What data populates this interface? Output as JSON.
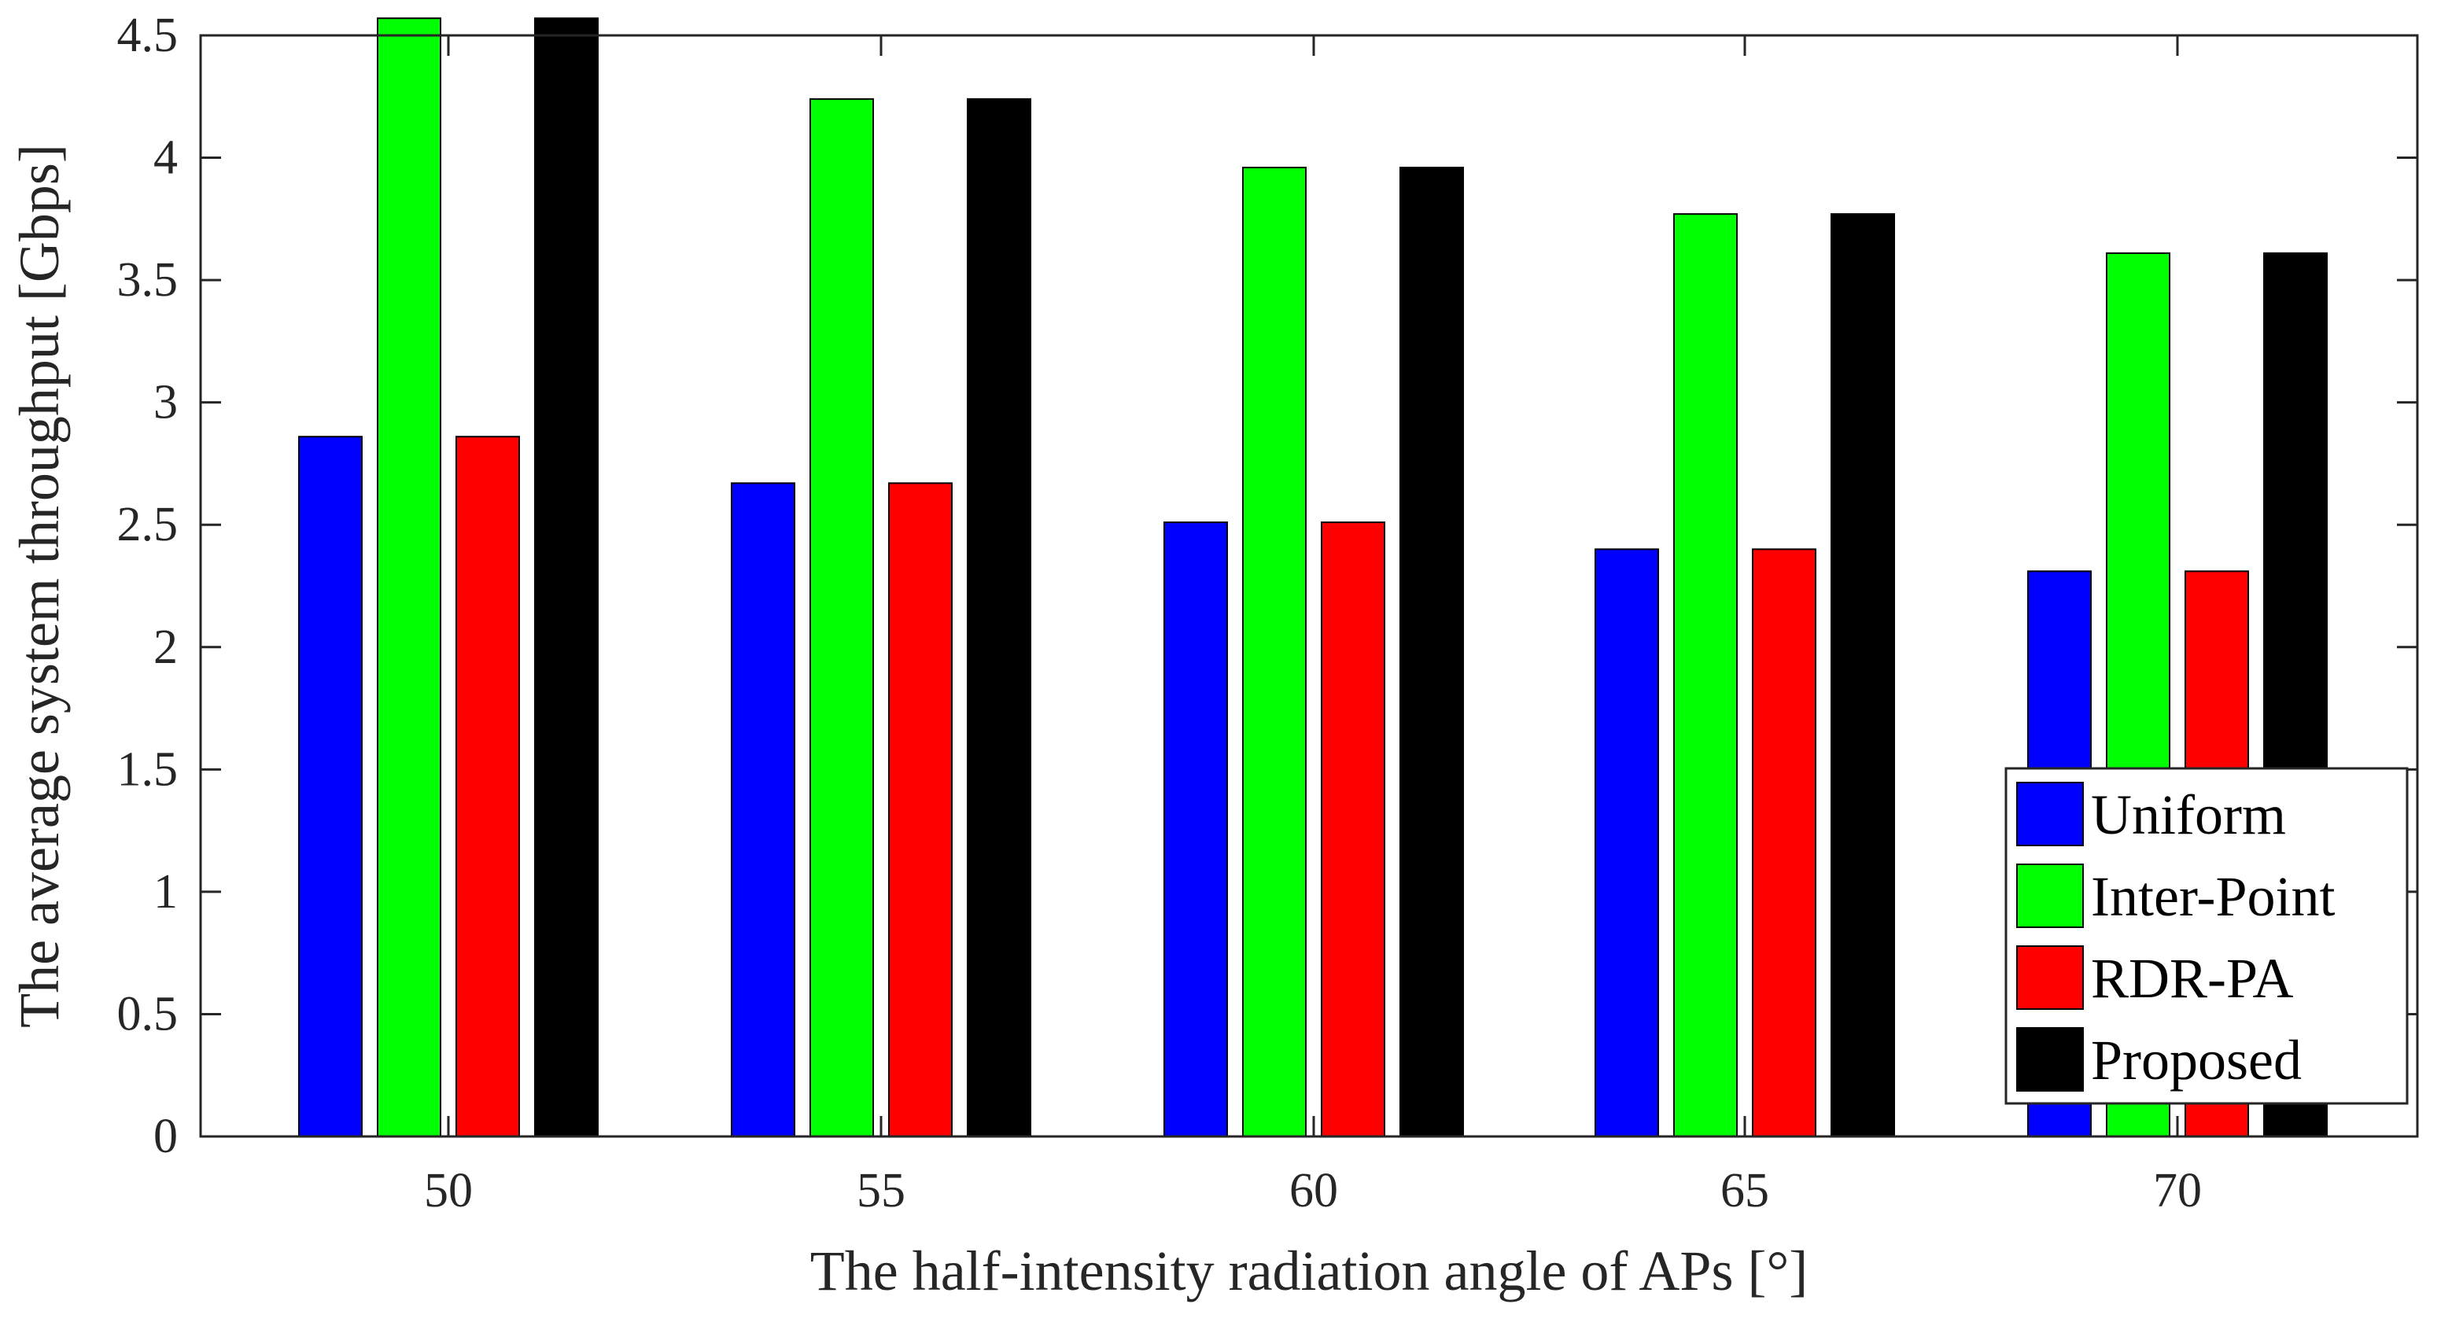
{
  "chart_data": {
    "type": "bar",
    "title": "",
    "xlabel": "The half-intensity radiation angle of APs [°]",
    "ylabel": "The average system throughput [Gbps]",
    "categories": [
      "50",
      "55",
      "60",
      "65",
      "70"
    ],
    "ylim": [
      0,
      4.5
    ],
    "yticks": [
      "0",
      "0.5",
      "1",
      "1.5",
      "2",
      "2.5",
      "3",
      "3.5",
      "4",
      "4.5"
    ],
    "grid": false,
    "legend_position": "bottom-right",
    "series": [
      {
        "name": "Uniform",
        "color": "#0000ff",
        "values": [
          2.86,
          2.67,
          2.51,
          2.4,
          2.31
        ]
      },
      {
        "name": "Inter-Point",
        "color": "#00ff00",
        "values": [
          4.57,
          4.24,
          3.96,
          3.77,
          3.61
        ]
      },
      {
        "name": "RDR-PA",
        "color": "#ff0000",
        "values": [
          2.86,
          2.67,
          2.51,
          2.4,
          2.31
        ]
      },
      {
        "name": "Proposed",
        "color": "#000000",
        "values": [
          4.57,
          4.24,
          3.96,
          3.77,
          3.61
        ]
      }
    ]
  }
}
